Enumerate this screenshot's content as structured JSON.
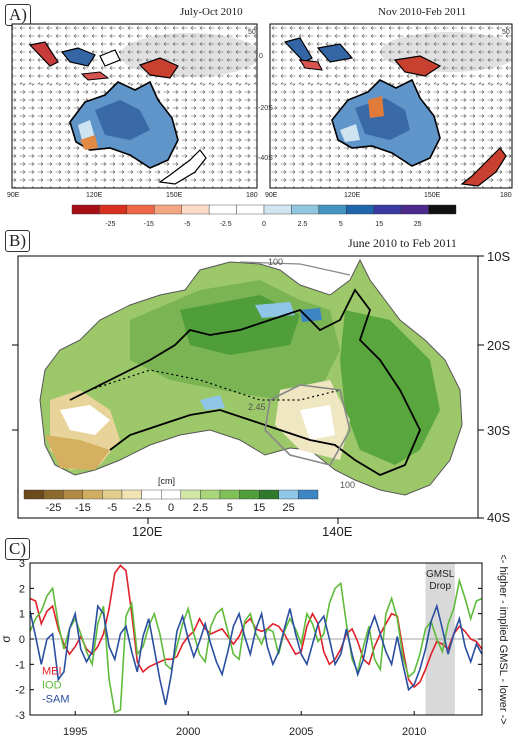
{
  "panel_a": {
    "tag": "A)",
    "left_title": "July-Oct 2010",
    "right_title": "Nov 2010-Feb 2011",
    "left_x_ticks": [
      "90E",
      "120E",
      "150E",
      "180"
    ],
    "right_x_ticks": [
      "90E",
      "120E",
      "150E",
      "180"
    ],
    "y_ticks": [
      "0",
      "-20S",
      "-40S"
    ],
    "vector_scale": "50",
    "colorbar_labels": [
      "-25",
      "-15",
      "-5",
      "-2.5",
      "0",
      "2.5",
      "5",
      "15",
      "25"
    ],
    "colorbar_colors": [
      "#a50f15",
      "#d7301f",
      "#ef6548",
      "#f4a582",
      "#fddbc7",
      "#ffffff",
      "#ffffff",
      "#d1e5f0",
      "#92c5de",
      "#4393c3",
      "#2166ac",
      "#3a3aa0",
      "#4b2a8c",
      "#111111"
    ]
  },
  "panel_b": {
    "tag": "B)",
    "title": "June 2010 to Feb 2011",
    "y_ticks": [
      "10S",
      "20S",
      "30S",
      "40S"
    ],
    "x_ticks": [
      "120E",
      "140E"
    ],
    "colorbar_unit": "[cm]",
    "colorbar_labels": [
      "-25",
      "-15",
      "-5",
      "-2.5",
      "0",
      "2.5",
      "5",
      "15",
      "25"
    ],
    "colorbar_colors": [
      "#6b4a1c",
      "#8c6a2e",
      "#b08a45",
      "#cfae62",
      "#e3cd8a",
      "#f0e3b4",
      "#ffffff",
      "#ffffff",
      "#cfe6a6",
      "#a9d67a",
      "#7fc057",
      "#4f9e3a",
      "#2e7a2a",
      "#8fc5e6",
      "#3d86c4"
    ],
    "contour_labels": [
      "100",
      "2.45",
      "100",
      "100"
    ]
  },
  "chart_data": {
    "type": "line",
    "tag": "C)",
    "ylabel": "σ",
    "right_label": "<- higher - implied GMSL - lower ->",
    "shade_label": [
      "GMSL",
      "Drop"
    ],
    "shade_range": [
      2010.5,
      2011.8
    ],
    "xlim": [
      1993,
      2013
    ],
    "ylim": [
      -3,
      3
    ],
    "x_ticks": [
      1995,
      2000,
      2005,
      2010
    ],
    "y_ticks": [
      3,
      2,
      1,
      0,
      -1,
      -2,
      -3
    ],
    "grid": false,
    "legend_position": "bottom-left",
    "x_step_years": 0.25,
    "series": [
      {
        "name": "MEI",
        "color": "#e0202a",
        "values": [
          1.6,
          1.5,
          0.6,
          1.1,
          1.3,
          0.4,
          -0.2,
          -0.6,
          -0.3,
          0.1,
          -0.4,
          -0.6,
          -0.3,
          0.2,
          1.2,
          2.6,
          2.9,
          2.7,
          1.0,
          -0.9,
          -1.3,
          -1.1,
          -1.0,
          -0.9,
          -0.8,
          -0.8,
          -0.7,
          -0.2,
          0.1,
          0.3,
          0.8,
          0.4,
          0.2,
          0.3,
          0.4,
          0.1,
          -0.2,
          0.1,
          0.6,
          0.8,
          0.4,
          0.3,
          0.4,
          0.6,
          0.5,
          0.2,
          -0.2,
          -0.6,
          -0.5,
          0.5,
          1.0,
          0.6,
          -0.5,
          -1.0,
          -0.8,
          -0.4,
          0.2,
          0.4,
          -0.1,
          -0.8,
          -1.0,
          -0.3,
          0.2,
          0.6,
          1.0,
          0.9,
          -0.4,
          -1.6,
          -1.9,
          -1.7,
          -1.2,
          -0.6,
          -0.1,
          -0.2,
          -0.4,
          0.2,
          0.5,
          0.3,
          0.0,
          -0.1,
          -0.4
        ]
      },
      {
        "name": "IOD",
        "color": "#5fbb3a",
        "values": [
          0.3,
          0.8,
          1.1,
          1.7,
          2.0,
          0.6,
          -0.4,
          0.4,
          0.8,
          0.2,
          -0.5,
          -1.0,
          0.6,
          1.3,
          -1.6,
          -2.9,
          -2.8,
          0.9,
          1.4,
          -0.6,
          -0.3,
          0.5,
          1.0,
          0.2,
          -1.0,
          -1.2,
          -0.3,
          0.6,
          1.2,
          0.2,
          -0.6,
          -0.9,
          0.5,
          1.0,
          1.2,
          0.3,
          -0.6,
          -0.8,
          0.7,
          1.0,
          0.2,
          -0.2,
          0.4,
          0.3,
          -0.6,
          0.3,
          0.8,
          0.4,
          -0.2,
          1.0,
          0.6,
          -0.1,
          0.2,
          1.4,
          2.0,
          2.2,
          0.6,
          -0.8,
          -1.3,
          -0.3,
          0.5,
          -0.8,
          -1.2,
          1.0,
          1.6,
          0.8,
          -0.7,
          -1.5,
          -1.3,
          -0.6,
          0.4,
          0.7,
          0.0,
          -0.5,
          0.6,
          1.2,
          2.3,
          1.6,
          0.8,
          1.5,
          1.6
        ]
      },
      {
        "name": "-SAM",
        "color": "#2a4ea0",
        "values": [
          1.1,
          0.1,
          -1.0,
          0.0,
          0.2,
          -1.6,
          -1.3,
          0.4,
          1.0,
          -0.4,
          -0.9,
          -0.5,
          1.3,
          1.0,
          -0.3,
          -0.8,
          0.2,
          0.5,
          -0.5,
          -1.3,
          0.1,
          0.8,
          -0.4,
          -1.6,
          -2.6,
          -1.4,
          0.3,
          0.9,
          0.0,
          -0.7,
          -0.1,
          0.6,
          -0.2,
          -0.9,
          -1.4,
          -0.5,
          0.5,
          1.0,
          0.1,
          -0.6,
          0.4,
          1.0,
          -0.3,
          -1.0,
          -0.5,
          0.4,
          1.2,
          0.2,
          -0.6,
          -1.0,
          -0.2,
          0.6,
          0.9,
          0.0,
          -1.0,
          -0.6,
          0.4,
          -0.6,
          -1.4,
          -0.8,
          0.3,
          0.9,
          0.2,
          -0.5,
          -1.0,
          0.1,
          -1.0,
          -2.0,
          -1.8,
          -1.2,
          -0.4,
          0.7,
          1.3,
          0.4,
          -0.6,
          0.2,
          0.8,
          -0.3,
          -0.9,
          -0.2,
          -0.6
        ]
      }
    ]
  }
}
